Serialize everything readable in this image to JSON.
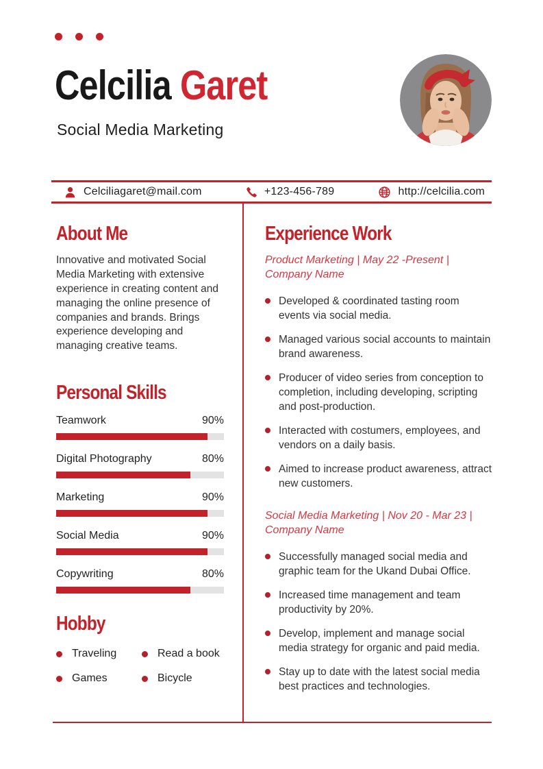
{
  "header": {
    "name_black": "Celcilia",
    "name_red": "Garet",
    "subtitle": "Social Media Marketing"
  },
  "contact": {
    "email": "Celciliagaret@mail.com",
    "phone": "+123-456-789",
    "website": "http://celcilia.com"
  },
  "about": {
    "title": "About Me",
    "text": "Innovative and motivated Social Media Marketing with extensive experience in creating content and managing the online presence of companies and brands. Brings experience developing and managing creative teams."
  },
  "skills": {
    "title": "Personal Skills",
    "items": [
      {
        "label": "Teamwork",
        "percent": 90,
        "percent_label": "90%"
      },
      {
        "label": "Digital Photography",
        "percent": 80,
        "percent_label": "80%"
      },
      {
        "label": "Marketing",
        "percent": 90,
        "percent_label": "90%"
      },
      {
        "label": "Social Media",
        "percent": 90,
        "percent_label": "90%"
      },
      {
        "label": "Copywriting",
        "percent": 80,
        "percent_label": "80%"
      }
    ]
  },
  "hobby": {
    "title": "Hobby",
    "items": [
      "Traveling",
      "Read a book",
      "Games",
      "Bicycle"
    ]
  },
  "experience": {
    "title": "Experience Work",
    "jobs": [
      {
        "heading_line1": "Product Marketing | May 22 -Present |",
        "heading_line2": "Company Name",
        "bullets": [
          "Developed & coordinated tasting room events via social media.",
          "Managed various social accounts to maintain brand awareness.",
          "Producer of video series from conception to completion, including developing, scripting and post-production.",
          "Interacted with costumers, employees, and vendors on a daily basis.",
          "Aimed to increase product awareness, attract new customers."
        ]
      },
      {
        "heading_line1": "Social Media Marketing | Nov 20 - Mar 23 |",
        "heading_line2": "Company Name",
        "bullets": [
          "Successfully managed social media and graphic team for the Ukand Dubai Office.",
          "Increased time management and team productivity by 20%.",
          "Develop, implement and manage social media strategy for organic and paid media.",
          "Stay up to date with the latest social media best practices and technologies."
        ]
      }
    ]
  },
  "colors": {
    "accent": "#C2232A",
    "name_red": "#CE2731",
    "subhead_red": "#D43843",
    "bar_bg": "#E3E3E3",
    "dot_red": "#B5212A",
    "photo_bg": "#8A8A8C"
  }
}
